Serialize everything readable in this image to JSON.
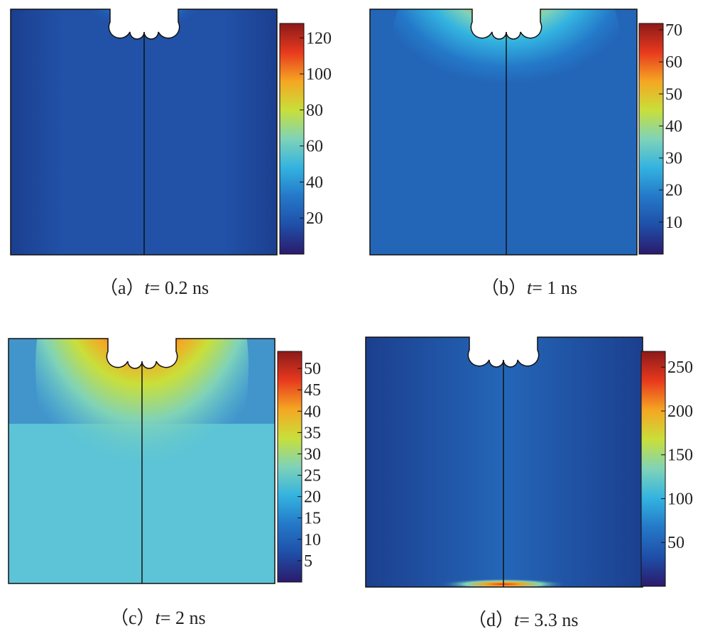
{
  "panels": [
    {
      "id": "a",
      "caption_prefix": "（a）",
      "caption_var": "t",
      "caption_rest": "= 0.2 ns",
      "colorbar": {
        "ticks": [
          120,
          100,
          80,
          60,
          40,
          20
        ],
        "min": 0,
        "max": 128
      }
    },
    {
      "id": "b",
      "caption_prefix": "（b）",
      "caption_var": "t",
      "caption_rest": "= 1 ns",
      "colorbar": {
        "ticks": [
          70,
          60,
          50,
          40,
          30,
          20,
          10
        ],
        "min": 0,
        "max": 72
      }
    },
    {
      "id": "c",
      "caption_prefix": "（c）",
      "caption_var": "t",
      "caption_rest": "= 2 ns",
      "colorbar": {
        "ticks": [
          50,
          45,
          40,
          35,
          30,
          25,
          20,
          15,
          10,
          5
        ],
        "min": 0,
        "max": 54
      }
    },
    {
      "id": "d",
      "caption_prefix": "（d）",
      "caption_var": "t",
      "caption_rest": "= 3.3 ns",
      "colorbar": {
        "ticks": [
          250,
          200,
          150,
          100,
          50
        ],
        "min": 0,
        "max": 268
      }
    }
  ],
  "colors": {
    "jet_stops": [
      "#2b1a6b",
      "#1f4fa8",
      "#2478c8",
      "#33b3e0",
      "#7fd3b8",
      "#c9df3a",
      "#f5a623",
      "#e8391d",
      "#8b1a1a"
    ],
    "background_field": "#1f4fa8",
    "outline": "#111111"
  }
}
